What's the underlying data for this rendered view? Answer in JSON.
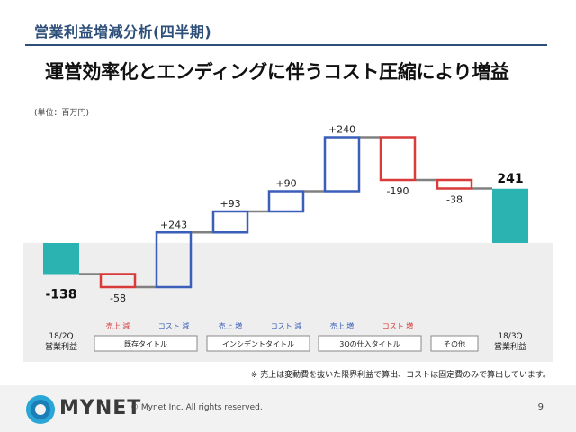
{
  "header": {
    "title": "営業利益増減分析(四半期)"
  },
  "main_title": "運営効率化とエンディングに伴うコスト圧縮により増益",
  "unit_label": "(単位：百万円)",
  "footnote": "※ 売上は変動費を抜いた限界利益で算出、コストは固定費のみで算出しています。",
  "footer": {
    "logo_text": "MYNET",
    "copyright": "© Mynet Inc. All rights reserved.",
    "page_number": "9"
  },
  "colors": {
    "total": "#2ab3b1",
    "increase": "#3a5fb8",
    "decrease": "#d93a3a",
    "connector": "#808080",
    "header": "#2e4f7a",
    "band": "#eeeeee"
  },
  "chart_data": {
    "type": "waterfall",
    "unit": "百万円",
    "start_total": -138,
    "steps": [
      {
        "label": "売上 減",
        "change": -58,
        "value_label": "-58"
      },
      {
        "label": "コスト 減",
        "change": 243,
        "value_label": "+243"
      },
      {
        "label": "売上 増",
        "change": 93,
        "value_label": "+93"
      },
      {
        "label": "コスト 減",
        "change": 90,
        "value_label": "+90"
      },
      {
        "label": "売上 増",
        "change": 240,
        "value_label": "+240"
      },
      {
        "label": "コスト 増",
        "change": -190,
        "value_label": "-190"
      },
      {
        "label": "",
        "change": -38,
        "value_label": "-38"
      }
    ],
    "end_total": 241,
    "start_label": {
      "period": "18/2Q",
      "name": "営業利益",
      "value": "-138"
    },
    "end_label": {
      "period": "18/3Q",
      "name": "営業利益",
      "value": "241"
    },
    "groups": [
      {
        "label": "既存タイトル",
        "from": 0,
        "to": 1
      },
      {
        "label": "インシデントタイトル",
        "from": 2,
        "to": 3
      },
      {
        "label": "3Qの仕入タイトル",
        "from": 4,
        "to": 5
      },
      {
        "label": "その他",
        "from": 6,
        "to": 6
      }
    ],
    "ylim": [
      -200,
      500
    ]
  }
}
